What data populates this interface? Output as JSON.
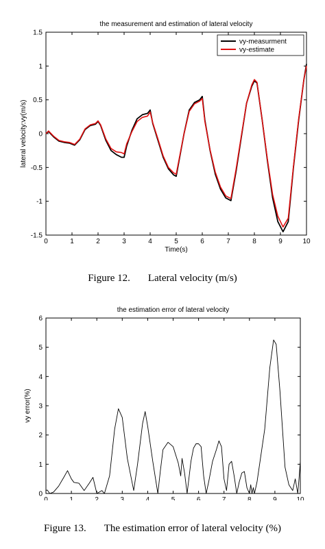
{
  "chart_data": [
    {
      "type": "line",
      "title": "the measurement and estimation of lateral velocity",
      "xlabel": "Time(s)",
      "ylabel": "lateral velocity:vy(m/s)",
      "xlim": [
        0,
        10
      ],
      "ylim": [
        -1.5,
        1.5
      ],
      "xticks": [
        0,
        1,
        2,
        3,
        4,
        5,
        6,
        7,
        8,
        9,
        10
      ],
      "yticks": [
        -1.5,
        -1,
        -0.5,
        0,
        0.5,
        1,
        1.5
      ],
      "grid": false,
      "legend": "top-right",
      "series": [
        {
          "name": "vy-measurment",
          "color": "#000000",
          "x": [
            0,
            0.1,
            0.3,
            0.5,
            0.7,
            0.9,
            1.1,
            1.3,
            1.5,
            1.7,
            1.9,
            2.0,
            2.1,
            2.3,
            2.5,
            2.7,
            2.9,
            3.0,
            3.1,
            3.3,
            3.5,
            3.7,
            3.9,
            4.0,
            4.1,
            4.3,
            4.5,
            4.7,
            4.9,
            5.0,
            5.1,
            5.3,
            5.5,
            5.7,
            5.9,
            6.0,
            6.1,
            6.3,
            6.5,
            6.7,
            6.9,
            7.1,
            7.3,
            7.5,
            7.7,
            7.9,
            8.0,
            8.1,
            8.3,
            8.5,
            8.7,
            8.9,
            9.1,
            9.3,
            9.5,
            9.7,
            9.9,
            10.0
          ],
          "values": [
            0.0,
            0.03,
            -0.05,
            -0.11,
            -0.13,
            -0.14,
            -0.17,
            -0.09,
            0.06,
            0.12,
            0.14,
            0.18,
            0.12,
            -0.1,
            -0.25,
            -0.31,
            -0.35,
            -0.35,
            -0.18,
            0.05,
            0.22,
            0.28,
            0.3,
            0.35,
            0.15,
            -0.1,
            -0.35,
            -0.52,
            -0.61,
            -0.63,
            -0.42,
            0.0,
            0.35,
            0.46,
            0.5,
            0.55,
            0.2,
            -0.25,
            -0.6,
            -0.82,
            -0.95,
            -0.99,
            -0.55,
            -0.05,
            0.45,
            0.7,
            0.78,
            0.75,
            0.2,
            -0.4,
            -0.95,
            -1.3,
            -1.45,
            -1.3,
            -0.5,
            0.2,
            0.8,
            1.03
          ]
        },
        {
          "name": "vy-estimate",
          "color": "#e01010",
          "x": [
            0,
            0.1,
            0.3,
            0.5,
            0.7,
            0.9,
            1.1,
            1.3,
            1.5,
            1.7,
            1.9,
            2.0,
            2.1,
            2.3,
            2.5,
            2.7,
            2.9,
            3.0,
            3.1,
            3.3,
            3.5,
            3.7,
            3.9,
            4.0,
            4.1,
            4.3,
            4.5,
            4.7,
            4.9,
            5.0,
            5.1,
            5.3,
            5.5,
            5.7,
            5.9,
            6.0,
            6.1,
            6.3,
            6.5,
            6.7,
            6.9,
            7.1,
            7.3,
            7.5,
            7.7,
            7.9,
            8.0,
            8.1,
            8.3,
            8.5,
            8.7,
            8.9,
            9.1,
            9.3,
            9.5,
            9.7,
            9.9,
            10.0
          ],
          "values": [
            0.0,
            0.04,
            -0.04,
            -0.1,
            -0.12,
            -0.13,
            -0.16,
            -0.08,
            0.07,
            0.13,
            0.15,
            0.19,
            0.13,
            -0.08,
            -0.22,
            -0.27,
            -0.28,
            -0.3,
            -0.15,
            0.03,
            0.18,
            0.24,
            0.26,
            0.32,
            0.16,
            -0.08,
            -0.33,
            -0.5,
            -0.58,
            -0.6,
            -0.4,
            0.0,
            0.33,
            0.44,
            0.48,
            0.52,
            0.18,
            -0.24,
            -0.57,
            -0.79,
            -0.92,
            -0.96,
            -0.52,
            -0.03,
            0.45,
            0.72,
            0.8,
            0.76,
            0.2,
            -0.38,
            -0.9,
            -1.22,
            -1.38,
            -1.25,
            -0.48,
            0.22,
            0.8,
            1.0
          ]
        }
      ]
    },
    {
      "type": "line",
      "title": "the estimation error of lateral velocity",
      "xlabel": "Time(s)",
      "ylabel": "vy error(%)",
      "xlim": [
        0,
        10
      ],
      "ylim": [
        0,
        6
      ],
      "xticks": [
        0,
        1,
        2,
        3,
        4,
        5,
        6,
        7,
        8,
        9,
        10
      ],
      "yticks": [
        0,
        1,
        2,
        3,
        4,
        5,
        6
      ],
      "grid": false,
      "legend": "none",
      "series": [
        {
          "color": "#000000",
          "x": [
            0,
            0.05,
            0.15,
            0.3,
            0.5,
            0.7,
            0.85,
            1.0,
            1.1,
            1.3,
            1.5,
            1.7,
            1.85,
            2.0,
            2.1,
            2.2,
            2.3,
            2.5,
            2.7,
            2.85,
            3.0,
            3.2,
            3.45,
            3.6,
            3.8,
            3.9,
            4.0,
            4.2,
            4.4,
            4.5,
            4.6,
            4.8,
            5.0,
            5.2,
            5.3,
            5.35,
            5.45,
            5.55,
            5.7,
            5.8,
            5.9,
            6.0,
            6.1,
            6.2,
            6.3,
            6.4,
            6.55,
            6.7,
            6.8,
            6.9,
            7.0,
            7.1,
            7.2,
            7.3,
            7.4,
            7.5,
            7.6,
            7.7,
            7.8,
            7.9,
            8.0,
            8.05,
            8.1,
            8.15,
            8.2,
            8.3,
            8.45,
            8.6,
            8.8,
            8.95,
            9.05,
            9.2,
            9.4,
            9.55,
            9.7,
            9.8,
            9.9,
            9.95,
            10.0
          ],
          "values": [
            0.1,
            0.12,
            0.0,
            0.05,
            0.25,
            0.55,
            0.78,
            0.5,
            0.38,
            0.35,
            0.1,
            0.35,
            0.55,
            0.0,
            0.05,
            0.1,
            0.0,
            0.6,
            2.2,
            2.9,
            2.6,
            1.2,
            0.1,
            1.0,
            2.4,
            2.8,
            2.3,
            1.1,
            0.0,
            0.8,
            1.5,
            1.75,
            1.6,
            1.05,
            0.6,
            1.2,
            0.7,
            0.0,
            1.1,
            1.55,
            1.7,
            1.7,
            1.6,
            0.6,
            0.0,
            0.4,
            1.1,
            1.5,
            1.8,
            1.6,
            0.5,
            0.1,
            1.0,
            1.1,
            0.6,
            0.0,
            0.4,
            0.7,
            0.75,
            0.2,
            0.0,
            0.3,
            0.0,
            0.2,
            0.0,
            0.4,
            1.3,
            2.2,
            4.3,
            5.25,
            5.1,
            3.5,
            0.9,
            0.3,
            0.1,
            0.5,
            0.0,
            0.5,
            1.1
          ]
        }
      ]
    }
  ],
  "captions": {
    "fig12_num": "Figure 12.",
    "fig12_text": "Lateral velocity (m/s)",
    "fig13_num": "Figure 13.",
    "fig13_text": "The estimation error of lateral velocity (%)"
  }
}
